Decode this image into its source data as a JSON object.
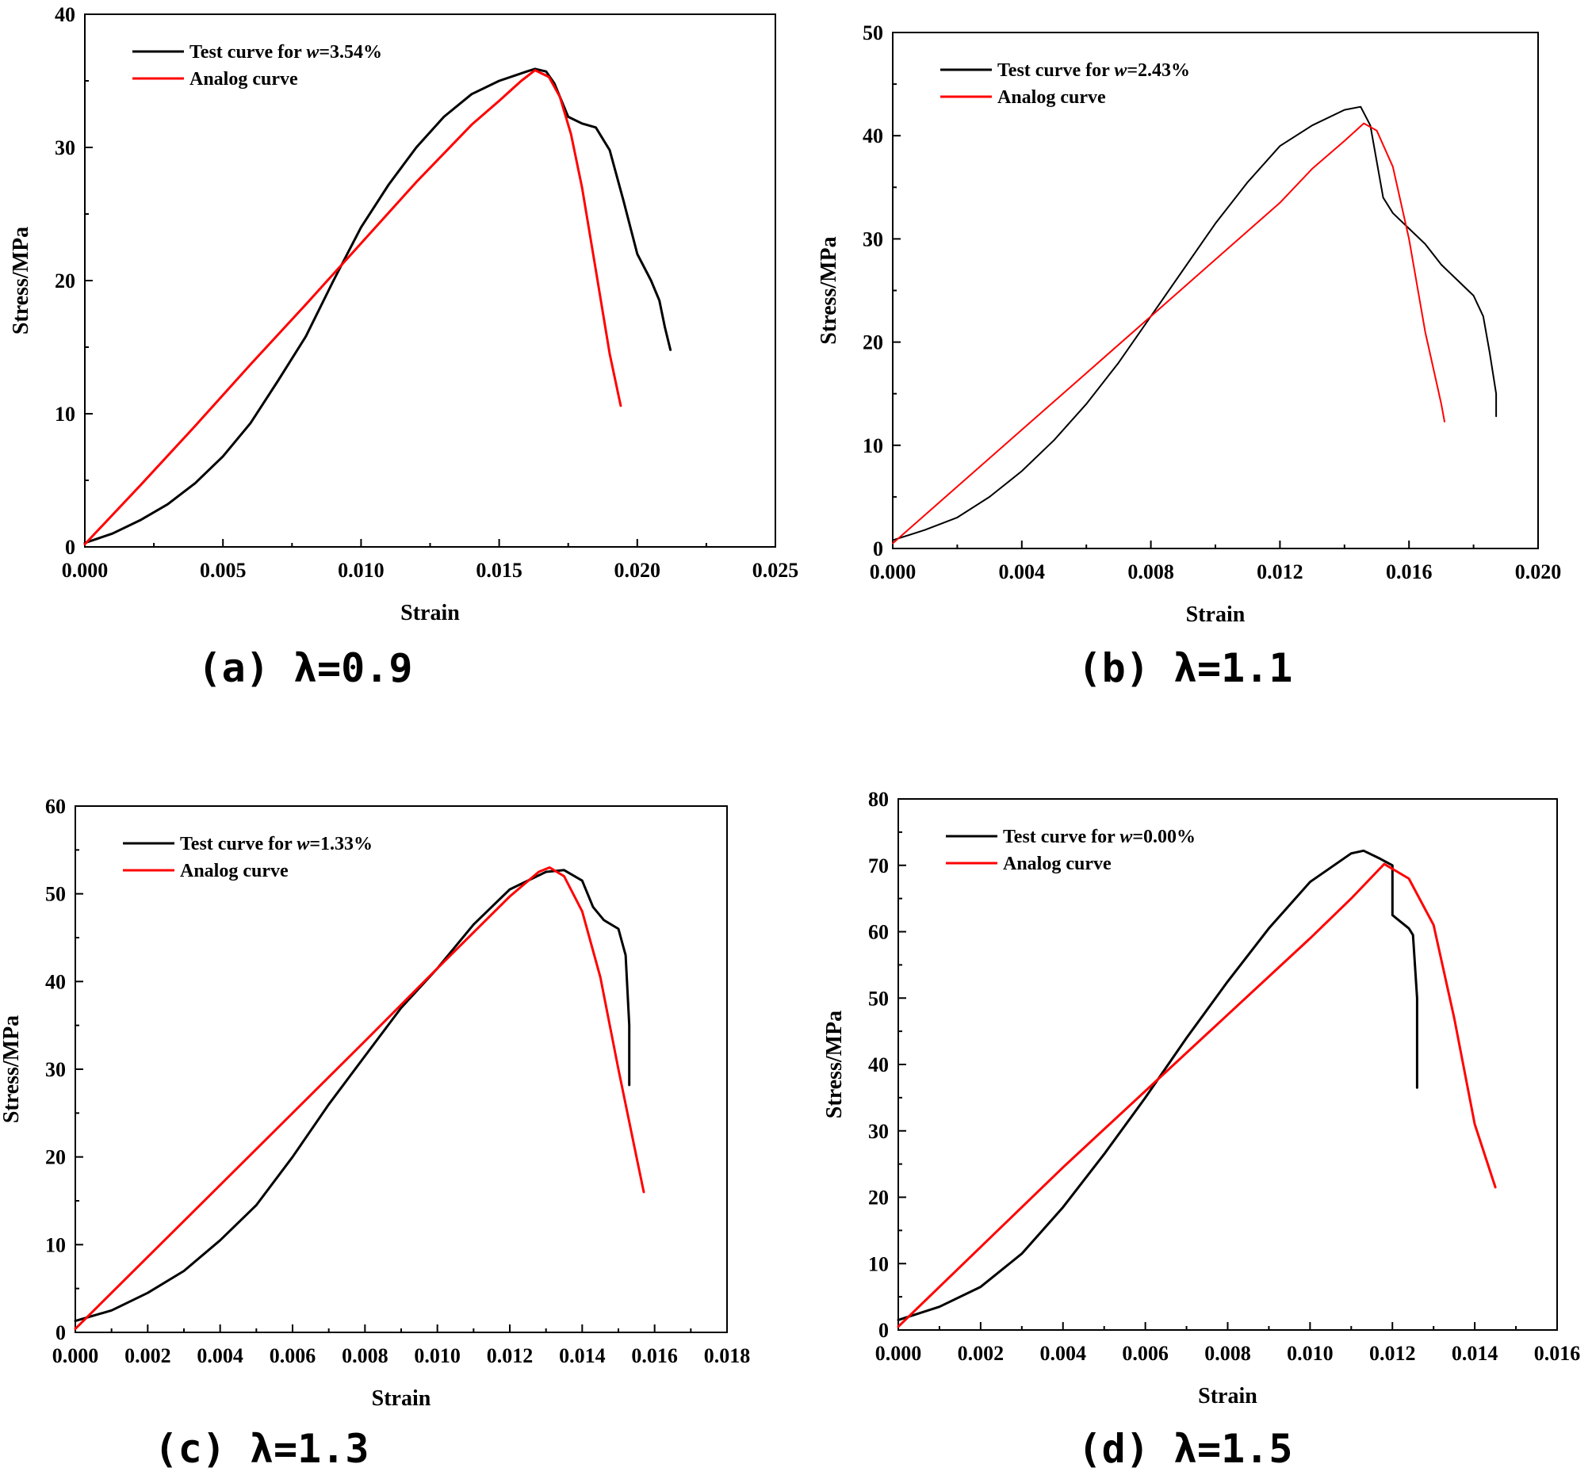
{
  "chart_data": [
    {
      "type": "line",
      "caption": "(a) λ=0.9",
      "xlabel": "Strain",
      "ylabel": "Stress/MPa",
      "xlim": [
        0,
        0.025
      ],
      "ylim": [
        0,
        40
      ],
      "x_ticks": [
        "0.000",
        "0.005",
        "0.010",
        "0.015",
        "0.020",
        "0.025"
      ],
      "y_ticks": [
        "0",
        "10",
        "20",
        "30",
        "40"
      ],
      "legend": {
        "position": "top-left"
      },
      "series": [
        {
          "name": "Test curve for w=3.54%",
          "legend_prefix": "Test curve for ",
          "legend_var": "w",
          "legend_suffix": "=3.54%",
          "color": "#000000",
          "x": [
            0,
            0.001,
            0.002,
            0.003,
            0.004,
            0.005,
            0.006,
            0.007,
            0.008,
            0.009,
            0.01,
            0.011,
            0.012,
            0.013,
            0.014,
            0.015,
            0.016,
            0.0163,
            0.0167,
            0.017,
            0.0175,
            0.018,
            0.0185,
            0.019,
            0.0195,
            0.02,
            0.0205,
            0.0208,
            0.021,
            0.0212
          ],
          "y": [
            0.3,
            1.0,
            2.0,
            3.2,
            4.8,
            6.8,
            9.3,
            12.5,
            15.8,
            20.0,
            24.0,
            27.2,
            30.0,
            32.3,
            34.0,
            35.0,
            35.7,
            35.9,
            35.7,
            34.8,
            32.3,
            31.8,
            31.5,
            29.8,
            26.0,
            22.0,
            20.0,
            18.5,
            16.5,
            14.8
          ]
        },
        {
          "name": "Analog curve",
          "legend_prefix": "Analog curve",
          "legend_var": "",
          "legend_suffix": "",
          "color": "#ff0000",
          "x": [
            0,
            0.002,
            0.004,
            0.006,
            0.008,
            0.01,
            0.012,
            0.014,
            0.015,
            0.0158,
            0.0163,
            0.0168,
            0.0172,
            0.0176,
            0.018,
            0.0185,
            0.019,
            0.0194
          ],
          "y": [
            0.2,
            4.6,
            9.1,
            13.7,
            18.2,
            22.8,
            27.4,
            31.7,
            33.5,
            35.0,
            35.8,
            35.3,
            33.8,
            31.0,
            27.0,
            20.8,
            14.5,
            10.6
          ]
        }
      ]
    },
    {
      "type": "line",
      "caption": "(b) λ=1.1",
      "xlabel": "Strain",
      "ylabel": "Stress/MPa",
      "xlim": [
        0,
        0.02
      ],
      "ylim": [
        0,
        50
      ],
      "x_ticks": [
        "0.000",
        "0.004",
        "0.008",
        "0.012",
        "0.016",
        "0.020"
      ],
      "y_ticks": [
        "0",
        "10",
        "20",
        "30",
        "40",
        "50"
      ],
      "legend": {
        "position": "top-left"
      },
      "series": [
        {
          "name": "Test curve for w=2.43%",
          "legend_prefix": "Test curve for ",
          "legend_var": "w",
          "legend_suffix": "=2.43%",
          "color": "#000000",
          "x": [
            0,
            0.001,
            0.002,
            0.003,
            0.004,
            0.005,
            0.006,
            0.007,
            0.008,
            0.009,
            0.01,
            0.011,
            0.012,
            0.013,
            0.014,
            0.0145,
            0.0148,
            0.015,
            0.0152,
            0.0155,
            0.016,
            0.0165,
            0.017,
            0.0175,
            0.018,
            0.0183,
            0.0185,
            0.0187,
            0.0187
          ],
          "y": [
            0.8,
            1.8,
            3.0,
            5.0,
            7.5,
            10.5,
            14.0,
            18.0,
            22.5,
            27.0,
            31.5,
            35.5,
            39.0,
            41.0,
            42.5,
            42.8,
            41.0,
            37.5,
            34.0,
            32.5,
            31.0,
            29.5,
            27.5,
            26.0,
            24.5,
            22.5,
            19.0,
            15.0,
            12.8
          ]
        },
        {
          "name": "Analog curve",
          "legend_prefix": "Analog curve",
          "legend_var": "",
          "legend_suffix": "",
          "color": "#ff0000",
          "x": [
            0,
            0.002,
            0.004,
            0.006,
            0.008,
            0.01,
            0.012,
            0.013,
            0.014,
            0.0146,
            0.015,
            0.0155,
            0.016,
            0.0165,
            0.017,
            0.0171
          ],
          "y": [
            0.5,
            6.0,
            11.5,
            17.0,
            22.5,
            28.0,
            33.5,
            36.8,
            39.5,
            41.2,
            40.5,
            37.0,
            30.0,
            21.0,
            14.0,
            12.3
          ]
        }
      ]
    },
    {
      "type": "line",
      "caption": "(c) λ=1.3",
      "xlabel": "Strain",
      "ylabel": "Stress/MPa",
      "xlim": [
        0,
        0.018
      ],
      "ylim": [
        0,
        60
      ],
      "x_ticks": [
        "0.000",
        "0.002",
        "0.004",
        "0.006",
        "0.008",
        "0.010",
        "0.012",
        "0.014",
        "0.016",
        "0.018"
      ],
      "y_ticks": [
        "0",
        "10",
        "20",
        "30",
        "40",
        "50",
        "60"
      ],
      "legend": {
        "position": "top-left"
      },
      "series": [
        {
          "name": "Test curve for w=1.33%",
          "legend_prefix": "Test curve for ",
          "legend_var": "w",
          "legend_suffix": "=1.33%",
          "color": "#000000",
          "x": [
            0,
            0.001,
            0.002,
            0.003,
            0.004,
            0.005,
            0.006,
            0.007,
            0.008,
            0.009,
            0.01,
            0.011,
            0.012,
            0.013,
            0.0135,
            0.014,
            0.0143,
            0.0146,
            0.015,
            0.0152,
            0.0153,
            0.0153
          ],
          "y": [
            1.3,
            2.5,
            4.5,
            7.0,
            10.5,
            14.5,
            20.0,
            26.0,
            31.5,
            37.0,
            41.5,
            46.5,
            50.5,
            52.5,
            52.7,
            51.5,
            48.5,
            47.0,
            46.0,
            43.0,
            35.0,
            28.2
          ]
        },
        {
          "name": "Analog curve",
          "legend_prefix": "Analog curve",
          "legend_var": "",
          "legend_suffix": "",
          "color": "#ff0000",
          "x": [
            0,
            0.002,
            0.004,
            0.006,
            0.008,
            0.01,
            0.012,
            0.0128,
            0.0131,
            0.0135,
            0.014,
            0.0145,
            0.015,
            0.0155,
            0.0157
          ],
          "y": [
            0.4,
            8.6,
            16.8,
            25.0,
            33.2,
            41.5,
            49.7,
            52.5,
            53.0,
            52.0,
            48.0,
            40.5,
            30.0,
            20.0,
            16.0
          ]
        }
      ]
    },
    {
      "type": "line",
      "caption": "(d) λ=1.5",
      "xlabel": "Strain",
      "ylabel": "Stress/MPa",
      "xlim": [
        0,
        0.016
      ],
      "ylim": [
        0,
        80
      ],
      "x_ticks": [
        "0.000",
        "0.002",
        "0.004",
        "0.006",
        "0.008",
        "0.010",
        "0.012",
        "0.014",
        "0.016"
      ],
      "y_ticks": [
        "0",
        "10",
        "20",
        "30",
        "40",
        "50",
        "60",
        "70",
        "80"
      ],
      "legend": {
        "position": "top-left"
      },
      "series": [
        {
          "name": "Test curve for w=0.00%",
          "legend_prefix": "Test curve for ",
          "legend_var": "w",
          "legend_suffix": "=0.00%",
          "color": "#000000",
          "x": [
            0,
            0.001,
            0.002,
            0.003,
            0.004,
            0.005,
            0.006,
            0.007,
            0.008,
            0.009,
            0.01,
            0.011,
            0.0113,
            0.0117,
            0.012,
            0.012,
            0.0122,
            0.0124,
            0.0125,
            0.0126,
            0.0126
          ],
          "y": [
            1.5,
            3.5,
            6.5,
            11.5,
            18.5,
            26.5,
            35.0,
            44.0,
            52.5,
            60.5,
            67.5,
            71.8,
            72.2,
            71.0,
            70.0,
            62.5,
            61.5,
            60.5,
            59.5,
            50.0,
            36.5
          ]
        },
        {
          "name": "Analog curve",
          "legend_prefix": "Analog curve",
          "legend_var": "",
          "legend_suffix": "",
          "color": "#ff0000",
          "x": [
            0,
            0.002,
            0.004,
            0.006,
            0.008,
            0.01,
            0.011,
            0.0118,
            0.0124,
            0.013,
            0.0135,
            0.014,
            0.0145
          ],
          "y": [
            0.5,
            12.5,
            24.5,
            36.0,
            47.5,
            59.0,
            65.0,
            70.2,
            68.0,
            61.0,
            47.0,
            31.0,
            21.5
          ]
        }
      ]
    }
  ]
}
